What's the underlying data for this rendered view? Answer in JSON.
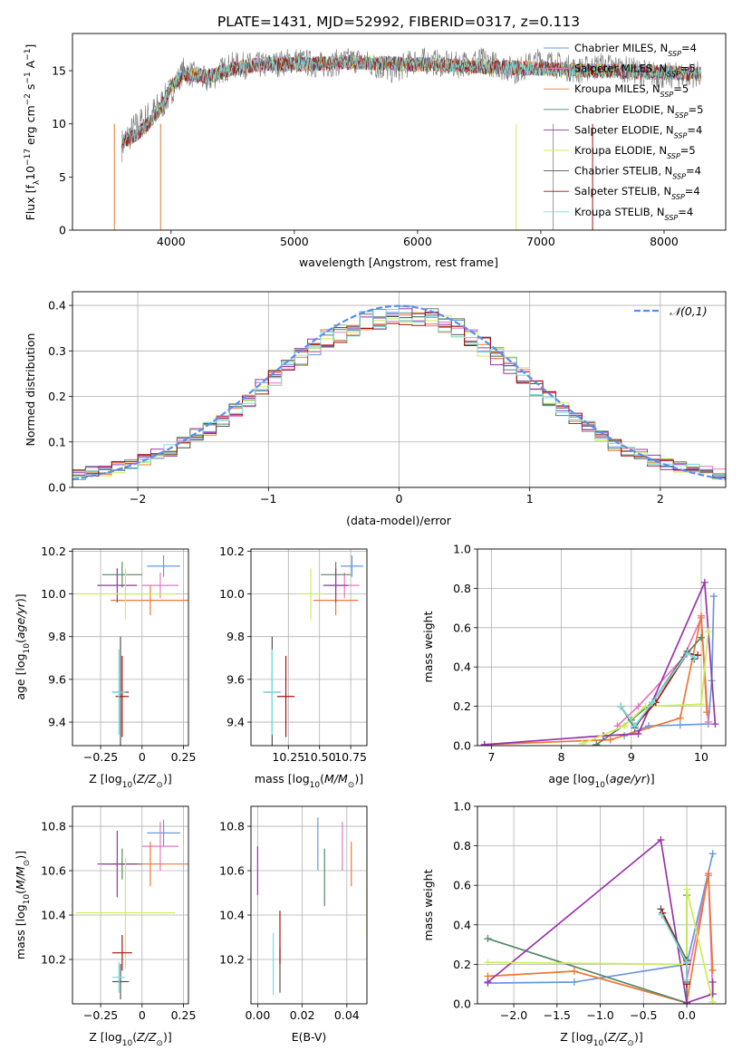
{
  "figure_title": "PLATE=1431, MJD=52992, FIBERID=0317, z=0.113",
  "colors": {
    "chabrier_miles": "#6699dd",
    "salpeter_miles": "#e377c2",
    "kroupa_miles": "#ee7733",
    "chabrier_elodie": "#558866",
    "salpeter_elodie": "#9933aa",
    "kroupa_elodie": "#ccee55",
    "chabrier_stelib": "#555555",
    "salpeter_stelib": "#aa1111",
    "kroupa_stelib": "#77dddd",
    "gaussian": "#5b8def",
    "grid": "#b0b0b0"
  },
  "chart_data": [
    {
      "id": "spectrum",
      "type": "line",
      "xlabel": "wavelength [Angstrom, rest frame]",
      "ylabel": "Flux [f_λ 10^-17 erg cm^-2 s^-1 A^-1]",
      "xlim": [
        3200,
        8500
      ],
      "ylim": [
        0,
        18.5
      ],
      "xticks": [
        4000,
        5000,
        6000,
        7000,
        8000
      ],
      "yticks": [
        0,
        5,
        10,
        15
      ],
      "grid": false,
      "legend_position": "top-right",
      "continuum": {
        "x": [
          3600,
          3700,
          3800,
          3900,
          4000,
          4100,
          4200,
          4300,
          4500,
          4800,
          5000,
          5500,
          6000,
          6500,
          7000,
          7500,
          8000,
          8300
        ],
        "y": [
          8.3,
          8.8,
          9.8,
          11.2,
          13.5,
          14.6,
          14.6,
          14.4,
          15.2,
          15.7,
          15.6,
          15.8,
          15.6,
          15.4,
          15.2,
          15.0,
          14.8,
          14.7
        ]
      },
      "data_series": [
        {
          "x": [
            3600,
            3700,
            3800,
            3900,
            4000,
            4100,
            4200,
            4300,
            4400,
            4500,
            4800,
            5000,
            5200,
            5500,
            5800,
            6000,
            6300,
            6500,
            6800,
            7000,
            7300,
            7500,
            8000,
            8300
          ],
          "y": [
            8.0,
            9.5,
            10.5,
            11.5,
            13.0,
            15.0,
            14.5,
            14.0,
            15.0,
            15.5,
            15.5,
            16.0,
            15.5,
            16.0,
            15.0,
            16.0,
            15.5,
            16.0,
            15.0,
            16.0,
            15.0,
            15.5,
            14.5,
            14.7
          ]
        }
      ],
      "series": [
        {
          "name": "Chabrier MILES, N_SSP=4",
          "color_key": "chabrier_miles"
        },
        {
          "name": "Salpeter MILES, N_SSP=5",
          "color_key": "salpeter_miles"
        },
        {
          "name": "Kroupa MILES, N_SSP=5",
          "color_key": "kroupa_miles"
        },
        {
          "name": "Chabrier ELODIE, N_SSP=5",
          "color_key": "chabrier_elodie"
        },
        {
          "name": "Salpeter ELODIE, N_SSP=4",
          "color_key": "salpeter_elodie"
        },
        {
          "name": "Kroupa ELODIE, N_SSP=5",
          "color_key": "kroupa_elodie"
        },
        {
          "name": "Chabrier STELIB, N_SSP=4",
          "color_key": "chabrier_stelib"
        },
        {
          "name": "Salpeter STELIB, N_SSP=4",
          "color_key": "salpeter_stelib"
        },
        {
          "name": "Kroupa STELIB, N_SSP=4",
          "color_key": "kroupa_stelib"
        }
      ]
    },
    {
      "id": "residuals",
      "type": "histogram",
      "xlabel": "(data-model)/error",
      "ylabel": "Normed distribution",
      "xlim": [
        -2.5,
        2.5
      ],
      "ylim": [
        0,
        0.43
      ],
      "xticks": [
        -2,
        -1,
        0,
        1,
        2
      ],
      "yticks": [
        0.0,
        0.1,
        0.2,
        0.3,
        0.4
      ],
      "grid": true,
      "legend_position": "top-right",
      "legend": "𝒩(0,1)",
      "bin_width": 0.1,
      "base_values": [
        0.03,
        0.035,
        0.035,
        0.045,
        0.05,
        0.06,
        0.07,
        0.08,
        0.1,
        0.115,
        0.13,
        0.15,
        0.17,
        0.195,
        0.22,
        0.24,
        0.265,
        0.285,
        0.305,
        0.325,
        0.34,
        0.355,
        0.365,
        0.37,
        0.375,
        0.38,
        0.375,
        0.37,
        0.36,
        0.35,
        0.33,
        0.31,
        0.29,
        0.27,
        0.245,
        0.22,
        0.195,
        0.17,
        0.15,
        0.13,
        0.11,
        0.095,
        0.08,
        0.07,
        0.06,
        0.05,
        0.045,
        0.04,
        0.035,
        0.03
      ]
    },
    {
      "id": "age_vs_Z",
      "type": "errorbar",
      "xlabel": "Z [log10(Z/Z⊙)]",
      "ylabel": "age  [log10(age/yr)]",
      "xlim": [
        -0.42,
        0.28
      ],
      "ylim": [
        9.29,
        10.21
      ],
      "xticks": [
        -0.25,
        0.0,
        0.25
      ],
      "yticks": [
        9.4,
        9.6,
        9.8,
        10.0,
        10.2
      ],
      "grid": true,
      "points": [
        {
          "color_key": "chabrier_miles",
          "x": 0.13,
          "xerr": 0.1,
          "y": 10.13,
          "yerr": 0.05
        },
        {
          "color_key": "salpeter_miles",
          "x": 0.11,
          "xerr": 0.11,
          "y": 10.04,
          "yerr": 0.06
        },
        {
          "color_key": "kroupa_miles",
          "x": 0.05,
          "xerr": 0.24,
          "y": 9.97,
          "yerr": 0.07
        },
        {
          "color_key": "chabrier_elodie",
          "x": -0.12,
          "xerr": 0.12,
          "y": 10.09,
          "yerr": 0.06
        },
        {
          "color_key": "salpeter_elodie",
          "x": -0.15,
          "xerr": 0.12,
          "y": 10.04,
          "yerr": 0.08
        },
        {
          "color_key": "kroupa_elodie",
          "x": -0.1,
          "xerr": 0.3,
          "y": 10.0,
          "yerr": 0.12
        },
        {
          "color_key": "chabrier_stelib",
          "x": -0.13,
          "xerr": 0.05,
          "y": 9.54,
          "yerr": 0.26
        },
        {
          "color_key": "salpeter_stelib",
          "x": -0.12,
          "xerr": 0.04,
          "y": 9.52,
          "yerr": 0.19
        },
        {
          "color_key": "kroupa_stelib",
          "x": -0.14,
          "xerr": 0.04,
          "y": 9.54,
          "yerr": 0.2
        }
      ]
    },
    {
      "id": "age_vs_mass",
      "type": "errorbar",
      "xlabel": "mass [log10(M/M⊙)]",
      "ylabel": "",
      "xlim": [
        9.95,
        10.88
      ],
      "ylim": [
        9.29,
        10.21
      ],
      "xticks": [
        10.25,
        10.5,
        10.75
      ],
      "tick_labels": [
        "10.25",
        "10.50",
        "10.75"
      ],
      "yticks": [
        9.4,
        9.6,
        9.8,
        10.0,
        10.2
      ],
      "grid": true,
      "points": [
        {
          "color_key": "chabrier_miles",
          "x": 10.76,
          "xerr": 0.09,
          "y": 10.13,
          "yerr": 0.05
        },
        {
          "color_key": "salpeter_miles",
          "x": 10.7,
          "xerr": 0.12,
          "y": 10.04,
          "yerr": 0.06
        },
        {
          "color_key": "kroupa_miles",
          "x": 10.63,
          "xerr": 0.18,
          "y": 9.97,
          "yerr": 0.07
        },
        {
          "color_key": "chabrier_elodie",
          "x": 10.63,
          "xerr": 0.12,
          "y": 10.09,
          "yerr": 0.06
        },
        {
          "color_key": "salpeter_elodie",
          "x": 10.63,
          "xerr": 0.1,
          "y": 10.04,
          "yerr": 0.08
        },
        {
          "color_key": "kroupa_elodie",
          "x": 10.43,
          "xerr": 0.1,
          "y": 10.0,
          "yerr": 0.12
        },
        {
          "color_key": "chabrier_stelib",
          "x": 10.12,
          "xerr": 0.07,
          "y": 9.54,
          "yerr": 0.26
        },
        {
          "color_key": "salpeter_stelib",
          "x": 10.23,
          "xerr": 0.07,
          "y": 9.52,
          "yerr": 0.19
        },
        {
          "color_key": "kroupa_stelib",
          "x": 10.12,
          "xerr": 0.07,
          "y": 9.54,
          "yerr": 0.2
        }
      ]
    },
    {
      "id": "mass_weight_vs_age",
      "type": "line",
      "xlabel": "age  [log10(age/yr)]",
      "ylabel": "mass weight",
      "xlim": [
        6.8,
        10.35
      ],
      "ylim": [
        0,
        1.0
      ],
      "xticks": [
        7,
        8,
        9,
        10
      ],
      "yticks": [
        0.0,
        0.2,
        0.4,
        0.6,
        0.8,
        1.0
      ],
      "grid": true,
      "series": [
        {
          "color_key": "chabrier_miles",
          "x": [
            8.9,
            9.25,
            9.7,
            10.1,
            10.15,
            10.18
          ],
          "y": [
            0.05,
            0.1,
            0.105,
            0.11,
            0.33,
            0.76
          ]
        },
        {
          "color_key": "salpeter_miles",
          "x": [
            8.8,
            9.1,
            9.75,
            10.0,
            10.1
          ],
          "y": [
            0.1,
            0.2,
            0.45,
            0.65,
            0.12
          ]
        },
        {
          "color_key": "kroupa_miles",
          "x": [
            6.9,
            8.7,
            9.7,
            10.0,
            10.08
          ],
          "y": [
            0.005,
            0.03,
            0.14,
            0.66,
            0.17
          ]
        },
        {
          "color_key": "chabrier_elodie",
          "x": [
            8.5,
            9.0,
            9.3,
            9.8,
            10.0
          ],
          "y": [
            0.005,
            0.13,
            0.22,
            0.47,
            0.55
          ]
        },
        {
          "color_key": "salpeter_elodie",
          "x": [
            6.9,
            8.6,
            9.1,
            10.05,
            10.2
          ],
          "y": [
            0.005,
            0.05,
            0.06,
            0.83,
            0.11
          ]
        },
        {
          "color_key": "kroupa_elodie",
          "x": [
            8.3,
            8.9,
            9.2,
            10.0,
            10.1
          ],
          "y": [
            0.01,
            0.1,
            0.2,
            0.21,
            0.58
          ]
        },
        {
          "color_key": "chabrier_stelib",
          "x": [
            8.85,
            9.05,
            9.3,
            9.8,
            9.9
          ],
          "y": [
            0.2,
            0.09,
            0.22,
            0.48,
            0.44
          ]
        },
        {
          "color_key": "salpeter_stelib",
          "x": [
            8.85,
            9.05,
            9.35,
            9.8,
            9.95
          ],
          "y": [
            0.2,
            0.1,
            0.22,
            0.47,
            0.46
          ]
        },
        {
          "color_key": "kroupa_stelib",
          "x": [
            8.85,
            9.05,
            9.3,
            9.8,
            9.9
          ],
          "y": [
            0.2,
            0.1,
            0.22,
            0.47,
            0.45
          ]
        }
      ]
    },
    {
      "id": "mass_vs_Z",
      "type": "errorbar",
      "xlabel": "Z [log10(Z/Z⊙)]",
      "ylabel": "mass [log10(M/M⊙)]",
      "xlim": [
        -0.42,
        0.28
      ],
      "ylim": [
        10.0,
        10.89
      ],
      "xticks": [
        -0.25,
        0.0,
        0.25
      ],
      "yticks": [
        10.2,
        10.4,
        10.6,
        10.8
      ],
      "grid": true,
      "points": [
        {
          "color_key": "chabrier_miles",
          "x": 0.13,
          "xerr": 0.1,
          "y": 10.77,
          "yerr": 0.06
        },
        {
          "color_key": "salpeter_miles",
          "x": 0.11,
          "xerr": 0.11,
          "y": 10.71,
          "yerr": 0.11
        },
        {
          "color_key": "kroupa_miles",
          "x": 0.05,
          "xerr": 0.24,
          "y": 10.63,
          "yerr": 0.1
        },
        {
          "color_key": "chabrier_elodie",
          "x": -0.12,
          "xerr": 0.12,
          "y": 10.63,
          "yerr": 0.07
        },
        {
          "color_key": "salpeter_elodie",
          "x": -0.15,
          "xerr": 0.12,
          "y": 10.63,
          "yerr": 0.15
        },
        {
          "color_key": "kroupa_elodie",
          "x": -0.1,
          "xerr": 0.3,
          "y": 10.41,
          "yerr": 0.25
        },
        {
          "color_key": "chabrier_stelib",
          "x": -0.13,
          "xerr": 0.05,
          "y": 10.1,
          "yerr": 0.08
        },
        {
          "color_key": "salpeter_stelib",
          "x": -0.12,
          "xerr": 0.06,
          "y": 10.23,
          "yerr": 0.08
        },
        {
          "color_key": "kroupa_stelib",
          "x": -0.14,
          "xerr": 0.04,
          "y": 10.12,
          "yerr": 0.07
        }
      ]
    },
    {
      "id": "mass_vs_ebv",
      "type": "errorbar",
      "xlabel": "E(B-V)",
      "ylabel": "",
      "xlim": [
        -0.003,
        0.049
      ],
      "ylim": [
        10.0,
        10.89
      ],
      "xticks": [
        0.0,
        0.02,
        0.04
      ],
      "tick_labels": [
        "0.00",
        "0.02",
        "0.04"
      ],
      "yticks": [
        10.2,
        10.4,
        10.6,
        10.8
      ],
      "grid": true,
      "points": [
        {
          "color_key": "chabrier_miles",
          "x": 0.027,
          "y": 10.72,
          "yerr": 0.12
        },
        {
          "color_key": "salpeter_miles",
          "x": 0.038,
          "y": 10.71,
          "yerr": 0.11
        },
        {
          "color_key": "kroupa_miles",
          "x": 0.042,
          "y": 10.63,
          "yerr": 0.1
        },
        {
          "color_key": "chabrier_elodie",
          "x": 0.03,
          "y": 10.57,
          "yerr": 0.13
        },
        {
          "color_key": "salpeter_elodie",
          "x": 0.0,
          "y": 10.6,
          "yerr": 0.11
        },
        {
          "color_key": "kroupa_elodie",
          "x": 0.049,
          "y": 10.48,
          "yerr": 0.18
        },
        {
          "color_key": "chabrier_stelib",
          "x": 0.01,
          "y": 10.15,
          "yerr": 0.1
        },
        {
          "color_key": "salpeter_stelib",
          "x": 0.01,
          "y": 10.3,
          "yerr": 0.12
        },
        {
          "color_key": "kroupa_stelib",
          "x": 0.007,
          "y": 10.18,
          "yerr": 0.14
        }
      ]
    },
    {
      "id": "mass_weight_vs_Z",
      "type": "line",
      "xlabel": "Z [log10(Z/Z⊙)]",
      "ylabel": "mass weight",
      "xlim": [
        -2.42,
        0.45
      ],
      "ylim": [
        0,
        1.0
      ],
      "xticks": [
        -2.0,
        -1.5,
        -1.0,
        -0.5,
        0.0
      ],
      "tick_labels": [
        "−2.0",
        "−1.5",
        "−1.0",
        "−0.5",
        "0.0"
      ],
      "yticks": [
        0.0,
        0.2,
        0.4,
        0.6,
        0.8,
        1.0
      ],
      "grid": true,
      "series": [
        {
          "color_key": "chabrier_miles",
          "x": [
            -2.3,
            -1.3,
            0.0,
            0.3
          ],
          "y": [
            0.105,
            0.11,
            0.2,
            0.76
          ]
        },
        {
          "color_key": "salpeter_miles",
          "x": [
            0.0,
            0.25,
            0.3
          ],
          "y": [
            0.12,
            0.65,
            0.05
          ]
        },
        {
          "color_key": "kroupa_miles",
          "x": [
            -2.3,
            -1.3,
            0.0,
            0.25,
            0.3
          ],
          "y": [
            0.14,
            0.165,
            0.005,
            0.66,
            0.17
          ]
        },
        {
          "color_key": "chabrier_elodie",
          "x": [
            -2.3,
            0.0,
            0.0
          ],
          "y": [
            0.33,
            0.005,
            0.55
          ]
        },
        {
          "color_key": "salpeter_elodie",
          "x": [
            -2.3,
            -0.3,
            0.0,
            0.3,
            0.3
          ],
          "y": [
            0.11,
            0.83,
            0.005,
            0.05,
            0.11
          ]
        },
        {
          "color_key": "kroupa_elodie",
          "x": [
            -2.3,
            0.0,
            0.0,
            0.3
          ],
          "y": [
            0.21,
            0.2,
            0.58,
            0.01
          ]
        },
        {
          "color_key": "chabrier_stelib",
          "x": [
            -0.3,
            0.0,
            0.0
          ],
          "y": [
            0.48,
            0.22,
            0.11
          ]
        },
        {
          "color_key": "salpeter_stelib",
          "x": [
            -0.28,
            0.0,
            0.0
          ],
          "y": [
            0.46,
            0.2,
            0.1
          ]
        },
        {
          "color_key": "kroupa_stelib",
          "x": [
            -0.29,
            0.0,
            0.0
          ],
          "y": [
            0.45,
            0.21,
            0.12
          ]
        }
      ]
    }
  ]
}
